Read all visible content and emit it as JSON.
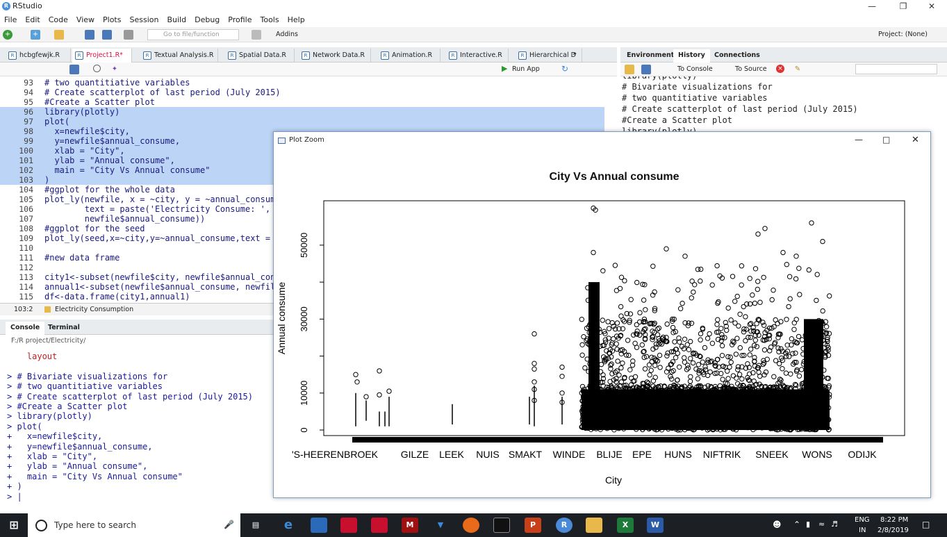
{
  "window": {
    "title": "RStudio",
    "project": "Project: (None)"
  },
  "menu": [
    "File",
    "Edit",
    "Code",
    "View",
    "Plots",
    "Session",
    "Build",
    "Debug",
    "Profile",
    "Tools",
    "Help"
  ],
  "toolbar": {
    "goto_placeholder": "Go to file/function",
    "addins": "Addins"
  },
  "editor": {
    "tabs": [
      "hcbgfewjk.R",
      "Project1.R*",
      "Textual Analysis.R",
      "Spatial Data.R",
      "Network Data.R",
      "Animation.R",
      "Interactive.R",
      "Hierarchical D"
    ],
    "run_app": "Run App",
    "lines": [
      {
        "n": "93",
        "t": "# two quantitiative variables",
        "sel": false,
        "cmt": true
      },
      {
        "n": "94",
        "t": "# Create scatterplot of last period (July 2015)",
        "sel": false,
        "cmt": true
      },
      {
        "n": "95",
        "t": "#Create a Scatter plot",
        "sel": false,
        "cmt": true
      },
      {
        "n": "96",
        "t": "library(plotly)",
        "sel": true,
        "cmt": false
      },
      {
        "n": "97",
        "t": "plot(",
        "sel": true,
        "cmt": false
      },
      {
        "n": "98",
        "t": "  x=newfile$city,",
        "sel": true,
        "cmt": false
      },
      {
        "n": "99",
        "t": "  y=newfile$annual_consume,",
        "sel": true,
        "cmt": false
      },
      {
        "n": "100",
        "t": "  xlab = \"City\",",
        "sel": true,
        "cmt": false
      },
      {
        "n": "101",
        "t": "  ylab = \"Annual consume\",",
        "sel": true,
        "cmt": false
      },
      {
        "n": "102",
        "t": "  main = \"City Vs Annual consume\"",
        "sel": true,
        "cmt": false
      },
      {
        "n": "103",
        "t": ")",
        "sel": true,
        "cmt": false
      },
      {
        "n": "104",
        "t": "#ggplot for the whole data",
        "sel": false,
        "cmt": true
      },
      {
        "n": "105",
        "t": "plot_ly(newfile, x = ~city, y = ~annual_consum",
        "sel": false,
        "cmt": false
      },
      {
        "n": "106",
        "t": "        text = paste('Electricity Consume: ',",
        "sel": false,
        "cmt": false
      },
      {
        "n": "107",
        "t": "        newfile$annual_consume))",
        "sel": false,
        "cmt": false
      },
      {
        "n": "108",
        "t": "#ggplot for the seed",
        "sel": false,
        "cmt": true
      },
      {
        "n": "109",
        "t": "plot_ly(seed,x=~city,y=~annual_consume,text =",
        "sel": false,
        "cmt": false
      },
      {
        "n": "110",
        "t": "",
        "sel": false,
        "cmt": false
      },
      {
        "n": "111",
        "t": "#new data frame",
        "sel": false,
        "cmt": true
      },
      {
        "n": "112",
        "t": "",
        "sel": false,
        "cmt": false
      },
      {
        "n": "113",
        "t": "city1<-subset(newfile$city, newfile$annual_con",
        "sel": false,
        "cmt": false
      },
      {
        "n": "114",
        "t": "annual1<-subset(newfile$annual_consume, newfil",
        "sel": false,
        "cmt": false
      },
      {
        "n": "115",
        "t": "df<-data.frame(city1,annual1)",
        "sel": false,
        "cmt": false
      }
    ],
    "status_pos": "103:2",
    "status_scope": "Electricity Consumption"
  },
  "console": {
    "tabs": [
      "Console",
      "Terminal"
    ],
    "path": "F:/R project/Electricity/",
    "lines": [
      "    layout",
      "",
      "> # Bivariate visualizations for",
      "> # two quantitiative variables",
      "> # Create scatterplot of last period (July 2015)",
      "> #Create a Scatter plot",
      "> library(plotly)",
      "> plot(",
      "+   x=newfile$city,",
      "+   y=newfile$annual_consume,",
      "+   xlab = \"City\",",
      "+   ylab = \"Annual consume\",",
      "+   main = \"City Vs Annual consume\"",
      "+ )",
      "> |"
    ]
  },
  "right_panel": {
    "tabs": [
      "Environment",
      "History",
      "Connections"
    ],
    "to_console": "To Console",
    "to_source": "To Source",
    "history_lines": [
      "library(plotly)",
      "# Bivariate visualizations for",
      "# two quantitiative variables",
      "# Create scatterplot of last period (July 2015)",
      "#Create a Scatter plot",
      "library(plotly)"
    ]
  },
  "plot_window": {
    "title": "Plot Zoom"
  },
  "chart_data": {
    "type": "scatter",
    "title": "City Vs Annual consume",
    "xlabel": "City",
    "ylabel": "Annual consume",
    "x_tick_labels": [
      "'S-HEERENBROEK",
      "GILZE",
      "LEEK",
      "NUIS",
      "SMAKT",
      "WINDE",
      "BLIJE",
      "EPE",
      "HUNS",
      "NIFTRIK",
      "SNEEK",
      "WONS",
      "ODIJK"
    ],
    "y_ticks": [
      0,
      10000,
      30000,
      50000
    ],
    "ylim": [
      -1500,
      62000
    ],
    "grid": false
  },
  "taskbar": {
    "search_placeholder": "Type here to search",
    "lang": "ENG",
    "region": "IN",
    "time": "8:22 PM",
    "date": "2/8/2019"
  }
}
